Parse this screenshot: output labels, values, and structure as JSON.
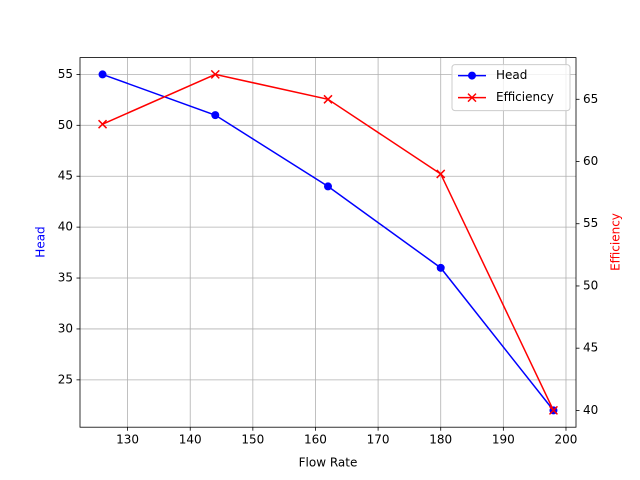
{
  "chart_data": {
    "type": "line",
    "x_label": "Flow Rate",
    "y_label": "Head",
    "y2_label": "Efficiency",
    "x": [
      126,
      144,
      162,
      180,
      198
    ],
    "series": [
      {
        "name": "Head",
        "color": "#0000ff",
        "marker": "o",
        "values": [
          55,
          51,
          44,
          36,
          22
        ]
      },
      {
        "name": "Efficiency",
        "color": "#ff0000",
        "marker": "x",
        "axis": "y2",
        "values": [
          63,
          67,
          65,
          59,
          40
        ]
      }
    ],
    "xlim": [
      122.4,
      201.6
    ],
    "xticks": [
      130,
      140,
      150,
      160,
      170,
      180,
      190,
      200
    ],
    "ylim": [
      20.35,
      56.65
    ],
    "yticks": [
      25,
      30,
      35,
      40,
      45,
      50,
      55
    ],
    "y2lim": [
      38.65,
      68.35
    ],
    "y2ticks": [
      40,
      45,
      50,
      55,
      60,
      65
    ],
    "grid": true,
    "legend": "upper right"
  }
}
